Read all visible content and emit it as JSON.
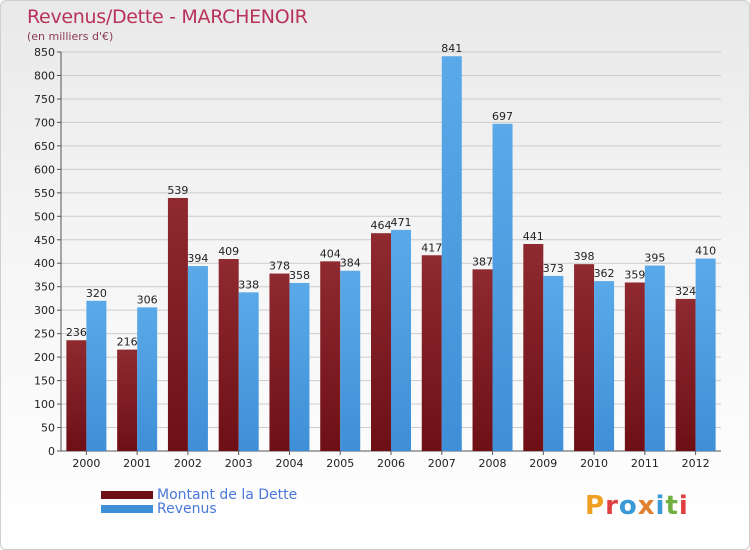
{
  "header": {
    "title": "Revenus/Dette - MARCHENOIR",
    "subtitle": "(en milliers d'€)"
  },
  "brand": {
    "logo_text": "Proxiti",
    "logo_letters": [
      {
        "ch": "P",
        "color": "#f0a020"
      },
      {
        "ch": "r",
        "color": "#e04040"
      },
      {
        "ch": "o",
        "color": "#3a9ad8"
      },
      {
        "ch": "x",
        "color": "#e08030"
      },
      {
        "ch": "i",
        "color": "#3a9ad8"
      },
      {
        "ch": "t",
        "color": "#70b040"
      },
      {
        "ch": "i",
        "color": "#e04040"
      }
    ]
  },
  "colors": {
    "dette": "#6e0f16",
    "dette_light": "#8e2a30",
    "revenus": "#3f8fd8",
    "revenus_light": "#5aa9e8",
    "grid": "#cccccc",
    "axis_text": "#222222"
  },
  "chart_data": {
    "type": "bar",
    "title": "Revenus/Dette - MARCHENOIR",
    "ylabel": "(en milliers d'€)",
    "xlabel": "",
    "ylim": [
      0,
      850
    ],
    "ytick_step": 50,
    "grid": true,
    "legend_position": "bottom-left",
    "categories": [
      "2000",
      "2001",
      "2002",
      "2003",
      "2004",
      "2005",
      "2006",
      "2007",
      "2008",
      "2009",
      "2010",
      "2011",
      "2012"
    ],
    "series": [
      {
        "name": "Montant de la Dette",
        "key": "dette",
        "values": [
          236,
          216,
          539,
          409,
          378,
          404,
          464,
          417,
          387,
          441,
          398,
          359,
          324
        ]
      },
      {
        "name": "Revenus",
        "key": "revenus",
        "values": [
          320,
          306,
          394,
          338,
          358,
          384,
          471,
          841,
          697,
          373,
          362,
          395,
          410
        ]
      }
    ]
  }
}
